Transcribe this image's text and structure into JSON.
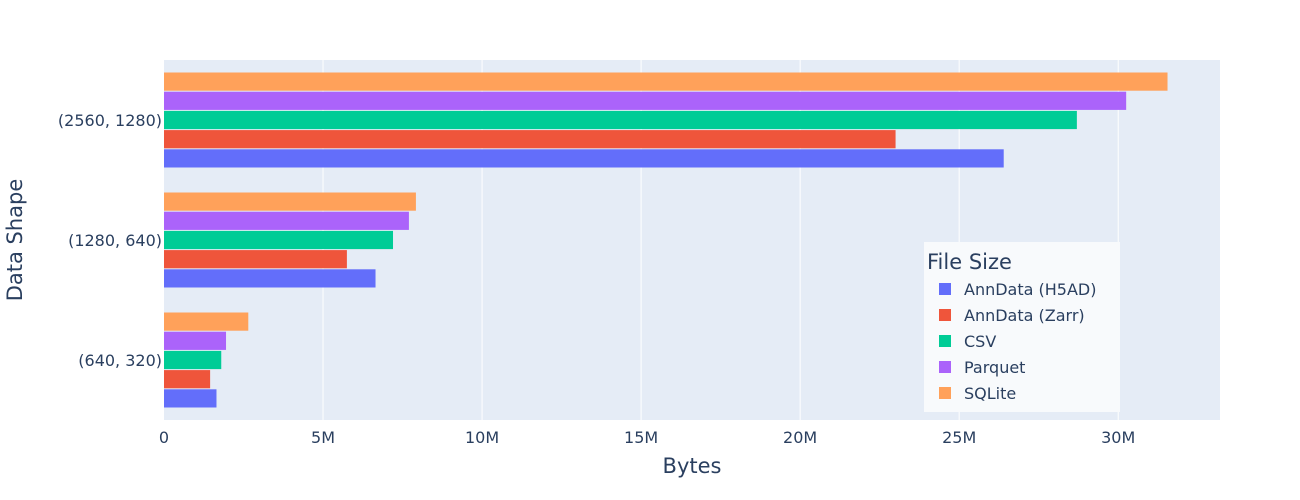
{
  "chart_data": {
    "type": "bar",
    "orientation": "horizontal",
    "barmode": "grouped",
    "categories": [
      "(640, 320)",
      "(1280, 640)",
      "(2560, 1280)"
    ],
    "series": [
      {
        "name": "AnnData (H5AD)",
        "color": "#636efa",
        "values": [
          1650000,
          6650000,
          26400000
        ]
      },
      {
        "name": "AnnData (Zarr)",
        "color": "#ef553b",
        "values": [
          1450000,
          5750000,
          23000000
        ]
      },
      {
        "name": "CSV",
        "color": "#00cc96",
        "values": [
          1800000,
          7200000,
          28700000
        ]
      },
      {
        "name": "Parquet",
        "color": "#ab63fa",
        "values": [
          1950000,
          7700000,
          30250000
        ]
      },
      {
        "name": "SQLite",
        "color": "#ffa15a",
        "values": [
          2650000,
          7920000,
          31550000
        ]
      }
    ],
    "xlabel": "Bytes",
    "ylabel": "Data Shape",
    "xlim": [
      0,
      33200000
    ],
    "x_ticks": [
      0,
      5000000,
      10000000,
      15000000,
      20000000,
      25000000,
      30000000
    ],
    "x_tick_labels": [
      "0",
      "5M",
      "10M",
      "15M",
      "20M",
      "25M",
      "30M"
    ],
    "grid": true,
    "legend": {
      "title": "File Size",
      "placement": "bottom-right inside plot"
    },
    "colors": {
      "plot_background": "#e5ecf6",
      "gridline": "#ffffff",
      "text": "#2a3f5f"
    }
  }
}
